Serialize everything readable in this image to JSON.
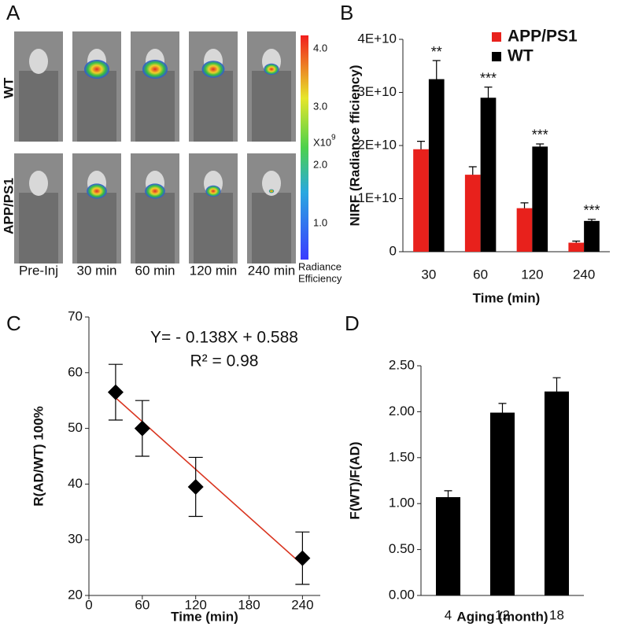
{
  "panel_a": {
    "panel_label": "A",
    "row_labels": [
      "WT",
      "APP/PS1"
    ],
    "column_labels": [
      "Pre-Inj",
      "30 min",
      "60 min",
      "120 min",
      "240 min"
    ],
    "colorbar": {
      "lim": [
        0.38,
        4.23
      ],
      "ticks": [
        {
          "value": 4,
          "label": "4.0"
        },
        {
          "value": 3,
          "label": "3.0"
        },
        {
          "value": 2,
          "label": "2.0"
        },
        {
          "value": 1,
          "label": "1.0"
        }
      ],
      "multiplier": "X10",
      "exponent": "9",
      "label_lines": [
        "Radiance",
        "Efficiency"
      ]
    }
  },
  "chart_data": [
    {
      "type": "bar",
      "panel_label": "B",
      "x_label": "Time (min)",
      "y_label": "NIRF (Radiance fficiency)",
      "categories": [
        "30",
        "60",
        "120",
        "240"
      ],
      "series": [
        {
          "name": "APP/PS1",
          "color": "#e8211c",
          "values": [
            19300000000,
            14500000000,
            8200000000,
            1700000000
          ],
          "errors": [
            1500000000,
            1500000000,
            1000000000,
            300000000
          ]
        },
        {
          "name": "WT",
          "color": "#000000",
          "values": [
            32500000000,
            29000000000,
            19800000000,
            5800000000
          ],
          "errors": [
            3500000000,
            2000000000,
            500000000,
            300000000
          ]
        }
      ],
      "annotations": [
        "**",
        "***",
        "***",
        "***"
      ],
      "ylim": [
        0,
        40000000000
      ],
      "yticks": [
        0,
        {
          "value": 10000000000,
          "label": "1E+10"
        },
        {
          "value": 20000000000,
          "label": "2E+10"
        },
        {
          "value": 30000000000,
          "label": "3E+10"
        },
        {
          "value": 40000000000,
          "label": "4E+10"
        }
      ],
      "legend": "upper right"
    },
    {
      "type": "scatter",
      "panel_label": "C",
      "x_label": "Time (min)",
      "y_label": "R(AD/WT) 100%",
      "x": [
        30,
        60,
        120,
        240
      ],
      "values": [
        56.5,
        50,
        39.5,
        26.7
      ],
      "errors": [
        5,
        5,
        5.3,
        4.7
      ],
      "color": "#000000",
      "fit": {
        "x": [
          30,
          240
        ],
        "values": [
          55.5,
          25.5
        ],
        "color": "#d9341f"
      },
      "annotations": [
        "Y= - 0.138X + 0.588",
        "R² = 0.98"
      ],
      "xlim": [
        0,
        260
      ],
      "xticks": [
        0,
        60,
        120,
        180,
        240
      ],
      "ylim": [
        20,
        70
      ],
      "yticks": [
        20,
        30,
        40,
        50,
        60,
        70
      ]
    },
    {
      "type": "bar",
      "panel_label": "D",
      "x_label": "Aging (month)",
      "y_label": "F(WT)/F(AD)",
      "categories": [
        "4",
        "12",
        "18"
      ],
      "series": [
        {
          "color": "#000000",
          "values": [
            1.07,
            1.99,
            2.22
          ],
          "errors": [
            0.07,
            0.1,
            0.15
          ]
        }
      ],
      "ylim": [
        0,
        2.5
      ],
      "yticks": [
        {
          "value": 0,
          "label": "0.00"
        },
        {
          "value": 0.5,
          "label": "0.50"
        },
        {
          "value": 1,
          "label": "1.00"
        },
        {
          "value": 1.5,
          "label": "1.50"
        },
        {
          "value": 2,
          "label": "2.00"
        },
        {
          "value": 2.5,
          "label": "2.50"
        }
      ]
    }
  ]
}
